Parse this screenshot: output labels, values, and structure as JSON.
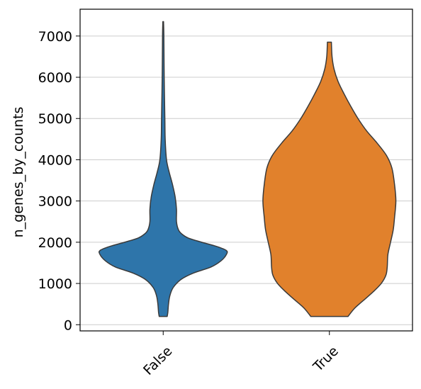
{
  "chart_data": {
    "type": "violin",
    "xlabel": "",
    "ylabel": "n_genes_by_counts",
    "categories": [
      "False",
      "True"
    ],
    "ylim": [
      -150,
      7650
    ],
    "yticks": [
      0,
      1000,
      2000,
      3000,
      4000,
      5000,
      6000,
      7000
    ],
    "grid": "horizontal",
    "series": [
      {
        "category": "False",
        "color": "#2e75aa",
        "min": 200,
        "max": 7350,
        "profile": [
          [
            200,
            0.06
          ],
          [
            300,
            0.07
          ],
          [
            500,
            0.08
          ],
          [
            700,
            0.1
          ],
          [
            900,
            0.15
          ],
          [
            1100,
            0.27
          ],
          [
            1250,
            0.45
          ],
          [
            1400,
            0.72
          ],
          [
            1550,
            0.87
          ],
          [
            1700,
            0.95
          ],
          [
            1800,
            0.95
          ],
          [
            1900,
            0.8
          ],
          [
            2000,
            0.58
          ],
          [
            2100,
            0.38
          ],
          [
            2200,
            0.28
          ],
          [
            2300,
            0.23
          ],
          [
            2500,
            0.2
          ],
          [
            2800,
            0.2
          ],
          [
            3100,
            0.18
          ],
          [
            3400,
            0.14
          ],
          [
            3700,
            0.09
          ],
          [
            4000,
            0.05
          ],
          [
            4500,
            0.03
          ],
          [
            5000,
            0.025
          ],
          [
            6000,
            0.015
          ],
          [
            7000,
            0.01
          ],
          [
            7350,
            0.005
          ]
        ]
      },
      {
        "category": "True",
        "color": "#e1812c",
        "min": 200,
        "max": 6850,
        "profile": [
          [
            200,
            0.28
          ],
          [
            400,
            0.38
          ],
          [
            600,
            0.52
          ],
          [
            800,
            0.66
          ],
          [
            1000,
            0.78
          ],
          [
            1200,
            0.85
          ],
          [
            1400,
            0.87
          ],
          [
            1700,
            0.88
          ],
          [
            2000,
            0.92
          ],
          [
            2300,
            0.96
          ],
          [
            2600,
            0.98
          ],
          [
            3000,
            1.0
          ],
          [
            3400,
            0.98
          ],
          [
            3800,
            0.94
          ],
          [
            4100,
            0.86
          ],
          [
            4400,
            0.72
          ],
          [
            4700,
            0.56
          ],
          [
            5000,
            0.43
          ],
          [
            5300,
            0.32
          ],
          [
            5600,
            0.22
          ],
          [
            5900,
            0.13
          ],
          [
            6200,
            0.07
          ],
          [
            6500,
            0.04
          ],
          [
            6850,
            0.03
          ]
        ]
      }
    ]
  }
}
